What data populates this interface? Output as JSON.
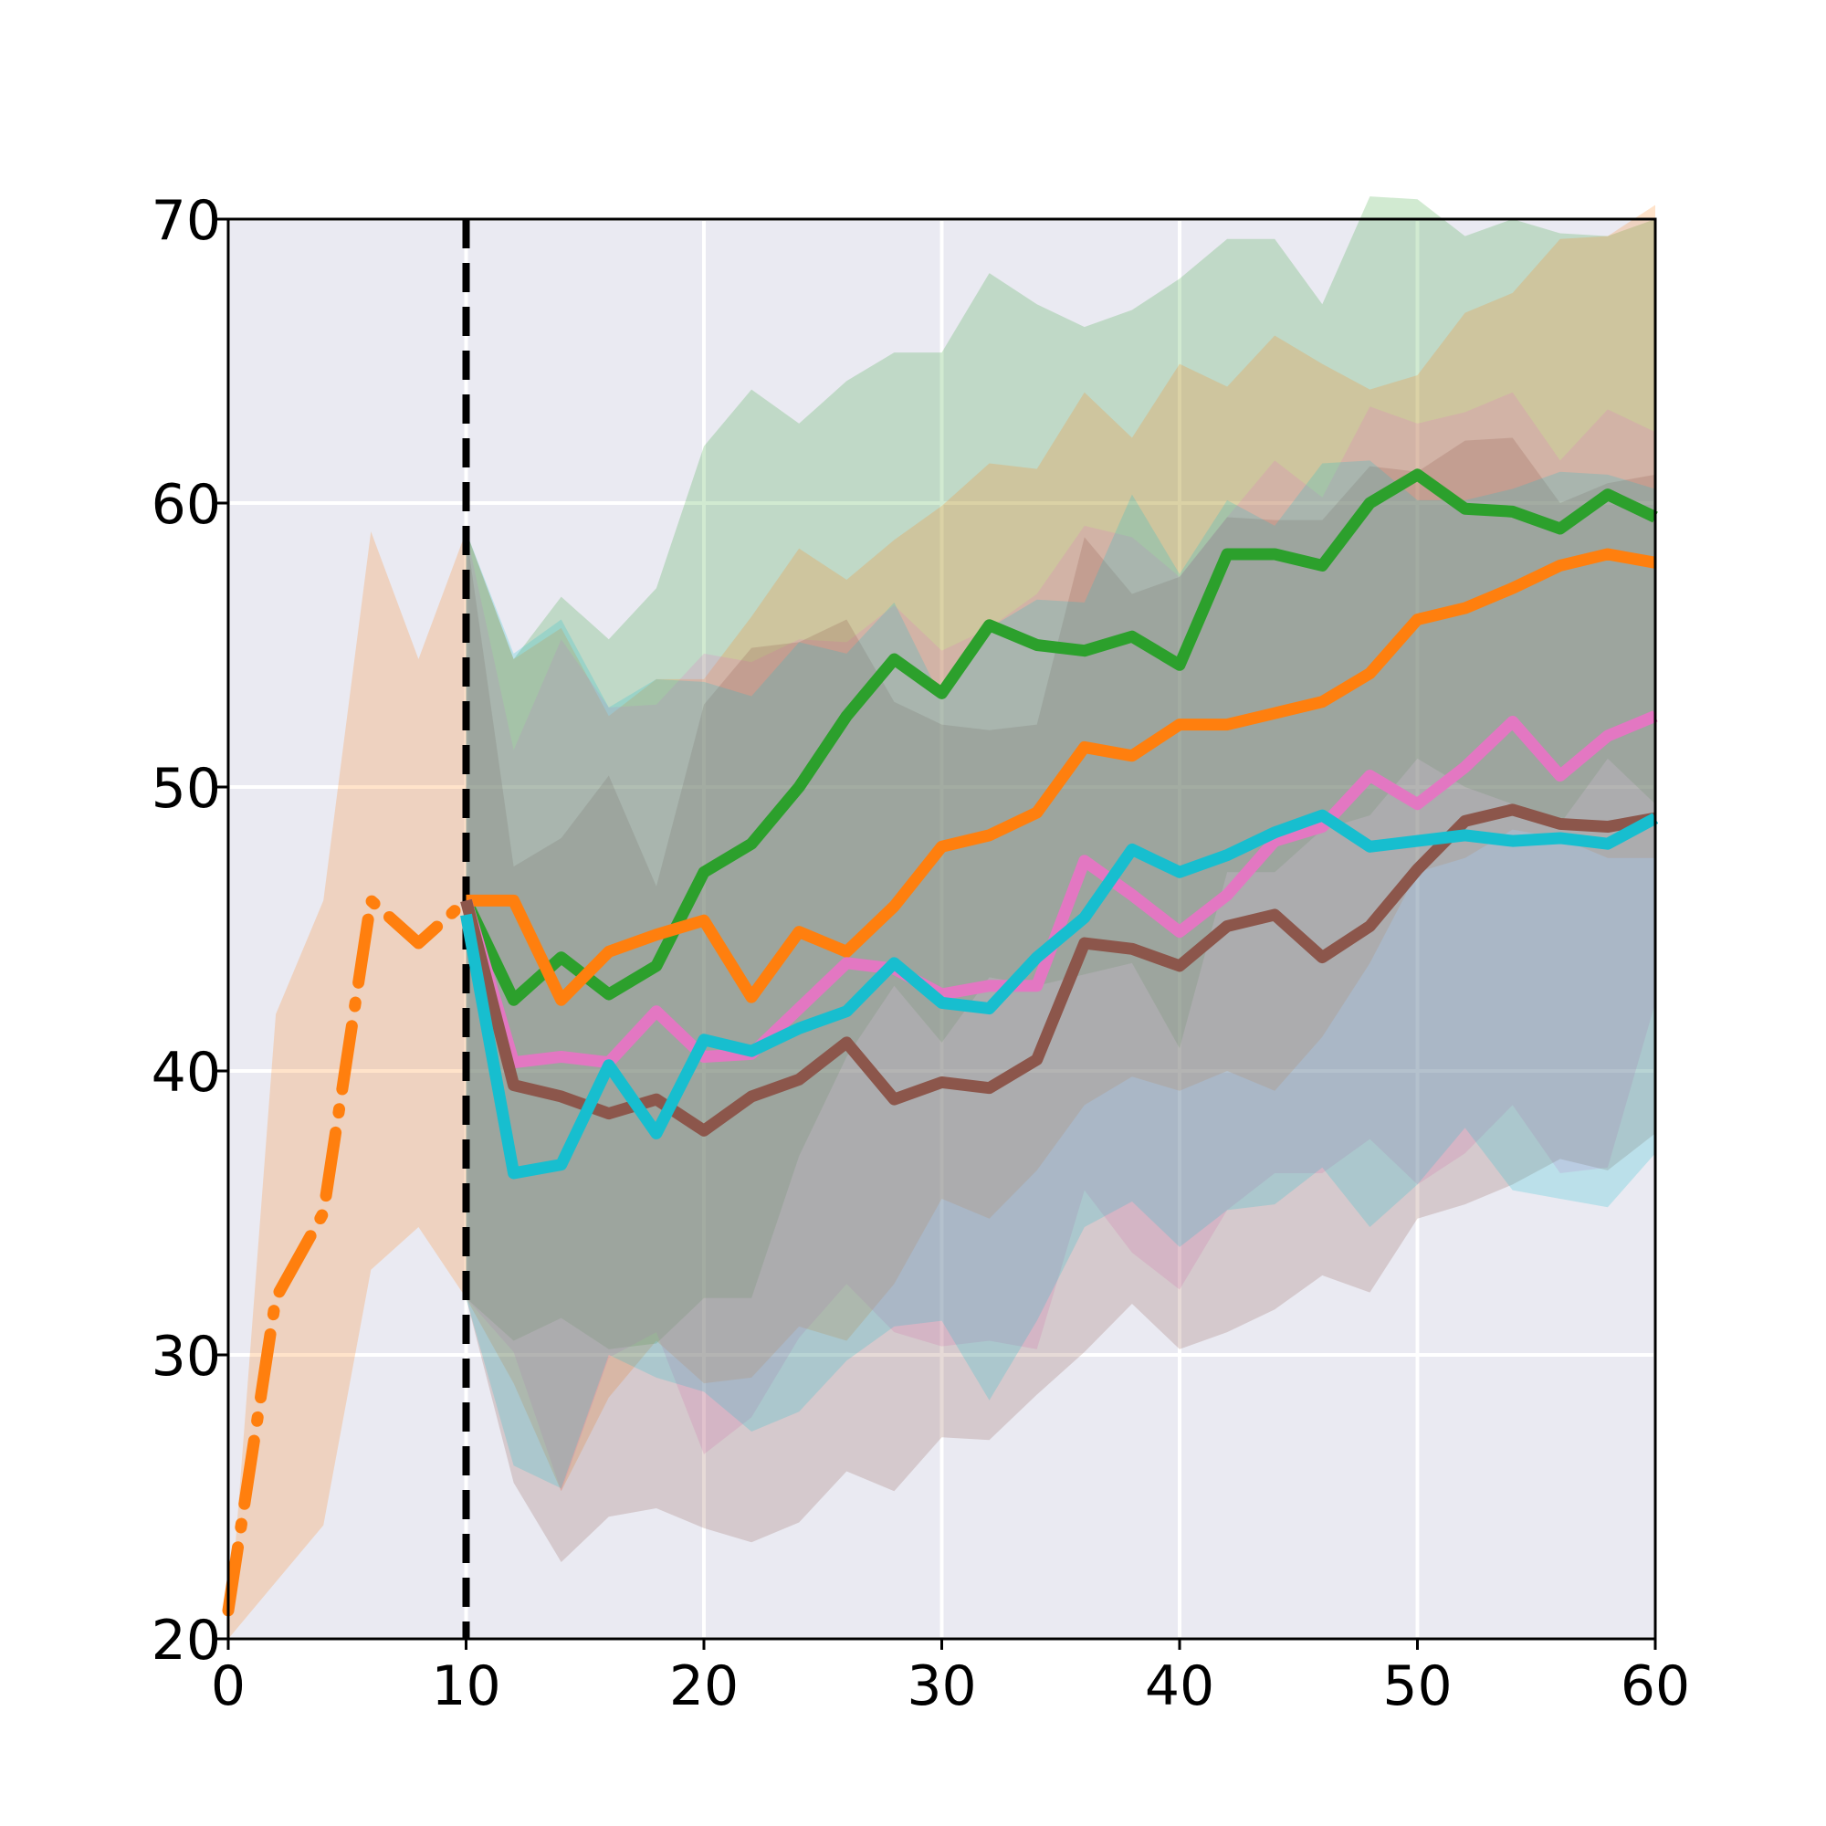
{
  "chart_data": {
    "type": "line",
    "title": "",
    "xlabel": "",
    "ylabel": "",
    "xlim": [
      0,
      60
    ],
    "ylim": [
      20,
      70
    ],
    "xticks": [
      0,
      10,
      20,
      30,
      40,
      50,
      60
    ],
    "yticks": [
      20,
      30,
      40,
      50,
      60,
      70
    ],
    "xtick_labels": [
      "0",
      "10",
      "20",
      "30",
      "40",
      "50",
      "60"
    ],
    "ytick_labels": [
      "20",
      "30",
      "40",
      "50",
      "60",
      "70"
    ],
    "grid": true,
    "legend": "none",
    "vline": {
      "x": 10,
      "color": "#000000",
      "style": "dashed"
    },
    "series": [
      {
        "color": "#ff7f0e",
        "style": "dashdot",
        "x": [
          0,
          2,
          4,
          6,
          8,
          10
        ],
        "y": [
          21,
          32,
          35,
          46,
          44.5,
          46
        ],
        "band_upper": [
          20,
          42,
          46,
          59,
          54.5,
          59
        ],
        "band_lower": [
          20,
          22,
          24,
          33,
          34.5,
          32
        ]
      },
      {
        "color": "#2ca02c",
        "style": "solid",
        "x": [
          10,
          12,
          14,
          16,
          18,
          20,
          22,
          24,
          26,
          28,
          30,
          32,
          34,
          36,
          38,
          40,
          42,
          44,
          46,
          48,
          50,
          52,
          54,
          56,
          58,
          60
        ],
        "y": [
          46,
          42.5,
          44,
          42.7,
          43.7,
          47,
          48,
          50,
          52.5,
          54.5,
          53.3,
          55.7,
          55,
          54.8,
          55.3,
          54.3,
          58.2,
          58.2,
          57.8,
          60,
          61,
          59.8,
          59.7,
          59.1,
          60.3,
          59.5
        ],
        "band_upper": [
          59,
          54.5,
          56.7,
          55.2,
          57,
          62,
          64,
          62.8,
          64.3,
          65.3,
          65.3,
          68.1,
          67,
          66.2,
          66.8,
          67.9,
          69.3,
          69.3,
          67,
          70.8,
          70.7,
          69.4,
          70,
          69.5,
          69.4,
          70
        ],
        "band_lower": [
          32,
          30.5,
          31.3,
          30.2,
          30.4,
          32,
          32,
          37,
          40.5,
          43,
          41,
          43.3,
          43,
          43.4,
          43.8,
          40.8,
          47,
          47,
          48.5,
          49,
          51,
          50,
          49.4,
          48.7,
          51,
          49.4
        ]
      },
      {
        "color": "#ff7f0e",
        "style": "solid",
        "x": [
          10,
          12,
          14,
          16,
          18,
          20,
          22,
          24,
          26,
          28,
          30,
          32,
          34,
          36,
          38,
          40,
          42,
          44,
          46,
          48,
          50,
          52,
          54,
          56,
          58,
          60
        ],
        "y": [
          46,
          46,
          42.5,
          44.2,
          44.8,
          45.3,
          42.6,
          44.9,
          44.2,
          45.8,
          47.9,
          48.3,
          49.1,
          51.4,
          51.1,
          52.2,
          52.2,
          52.6,
          53,
          54,
          55.9,
          56.3,
          57,
          57.8,
          58.2,
          57.9
        ],
        "band_upper": [
          59,
          54.5,
          55.6,
          52.5,
          53.8,
          53.8,
          56,
          58.4,
          57.3,
          58.7,
          59.9,
          61.4,
          61.2,
          63.9,
          62.3,
          64.9,
          64.1,
          65.9,
          64.9,
          64,
          64.5,
          66.7,
          67.4,
          69.3,
          69.4,
          70.5
        ],
        "band_lower": [
          32,
          29,
          25.2,
          28.5,
          30.5,
          29,
          29.2,
          31,
          30.5,
          32.5,
          35.5,
          34.8,
          36.5,
          38.8,
          39.8,
          39.3,
          40,
          39.3,
          41.2,
          43.8,
          47,
          47.5,
          48.5,
          48.2,
          47.5,
          47.5
        ]
      },
      {
        "color": "#e377c2",
        "style": "solid",
        "x": [
          10,
          12,
          14,
          16,
          18,
          20,
          22,
          24,
          26,
          28,
          30,
          32,
          34,
          36,
          38,
          40,
          42,
          44,
          46,
          48,
          50,
          52,
          54,
          56,
          58,
          60
        ],
        "y": [
          46,
          40.3,
          40.5,
          40.3,
          42.1,
          40.5,
          40.6,
          42.2,
          43.8,
          43.6,
          42.7,
          43,
          43,
          47.4,
          46.2,
          44.9,
          46.2,
          48.1,
          48.6,
          50.4,
          49.4,
          50.7,
          52.3,
          50.4,
          51.8,
          52.5
        ],
        "band_upper": [
          59,
          51.3,
          55.2,
          52.8,
          52.9,
          54.7,
          54.4,
          55.2,
          55.1,
          56.4,
          54.8,
          55.6,
          56.8,
          59.2,
          58.8,
          57.4,
          59.5,
          61.5,
          60.2,
          63.4,
          62.8,
          63.2,
          63.9,
          61.5,
          63.3,
          62.5
        ],
        "band_lower": [
          32,
          30.1,
          25.2,
          29.9,
          30.8,
          26.5,
          27.8,
          30.6,
          32.5,
          30.8,
          30.3,
          30.5,
          30.2,
          35.8,
          33.6,
          32.3,
          35.1,
          36.4,
          36.4,
          37.6,
          36,
          37.1,
          38.8,
          36.4,
          36.6,
          42.4
        ]
      },
      {
        "color": "#8c564b",
        "style": "solid",
        "x": [
          10,
          12,
          14,
          16,
          18,
          20,
          22,
          24,
          26,
          28,
          30,
          32,
          34,
          36,
          38,
          40,
          42,
          44,
          46,
          48,
          50,
          52,
          54,
          56,
          58,
          60
        ],
        "y": [
          46,
          39.5,
          39.1,
          38.5,
          39,
          37.9,
          39.1,
          39.7,
          41,
          39,
          39.6,
          39.4,
          40.4,
          44.5,
          44.3,
          43.7,
          45.1,
          45.5,
          44,
          45.1,
          47.1,
          48.8,
          49.2,
          48.7,
          48.6,
          48.9
        ],
        "band_upper": [
          59,
          47.2,
          48.2,
          50.4,
          46.5,
          52.9,
          54.9,
          55.1,
          55.9,
          53,
          52.2,
          52,
          52.2,
          58.8,
          56.8,
          57.4,
          59.5,
          59.4,
          59.4,
          61.3,
          61.1,
          62.2,
          62.3,
          60,
          60.7,
          61
        ],
        "band_lower": [
          32,
          25.5,
          22.7,
          24.3,
          24.6,
          23.9,
          23.4,
          24.1,
          25.9,
          25.2,
          27.1,
          27,
          28.6,
          30.1,
          31.8,
          30.2,
          30.8,
          31.6,
          32.8,
          32.2,
          34.8,
          35.3,
          36,
          36.9,
          36.5,
          37.8
        ]
      },
      {
        "color": "#17becf",
        "style": "solid",
        "x": [
          10,
          12,
          14,
          16,
          18,
          20,
          22,
          24,
          26,
          28,
          30,
          32,
          34,
          36,
          38,
          40,
          42,
          44,
          46,
          48,
          50,
          52,
          54,
          56,
          58,
          60
        ],
        "y": [
          45.5,
          36.4,
          36.7,
          40.2,
          37.8,
          41.1,
          40.7,
          41.5,
          42.1,
          43.8,
          42.4,
          42.2,
          44,
          45.4,
          47.8,
          47,
          47.6,
          48.4,
          49,
          47.9,
          48.1,
          48.3,
          48.1,
          48.2,
          48,
          48.9
        ],
        "band_upper": [
          59,
          54.7,
          55.9,
          52.8,
          53.8,
          53.7,
          53.2,
          55.1,
          54.7,
          56.5,
          53.1,
          55.6,
          56.6,
          56.5,
          60.3,
          57.5,
          60.1,
          59.2,
          61.4,
          61.5,
          60.1,
          60.1,
          60.5,
          61.1,
          61,
          60.5
        ],
        "band_lower": [
          32,
          26.1,
          25.3,
          30,
          29.2,
          28.7,
          27.3,
          28,
          29.8,
          31,
          31.2,
          28.4,
          31.2,
          34.5,
          35.4,
          33.8,
          35.1,
          35.3,
          36.6,
          34.5,
          36,
          38,
          35.8,
          35.5,
          35.2,
          37.1
        ]
      }
    ],
    "colors": {
      "plot_background": "#eaeaf2",
      "grid": "#ffffff",
      "axes": "#000000"
    }
  }
}
